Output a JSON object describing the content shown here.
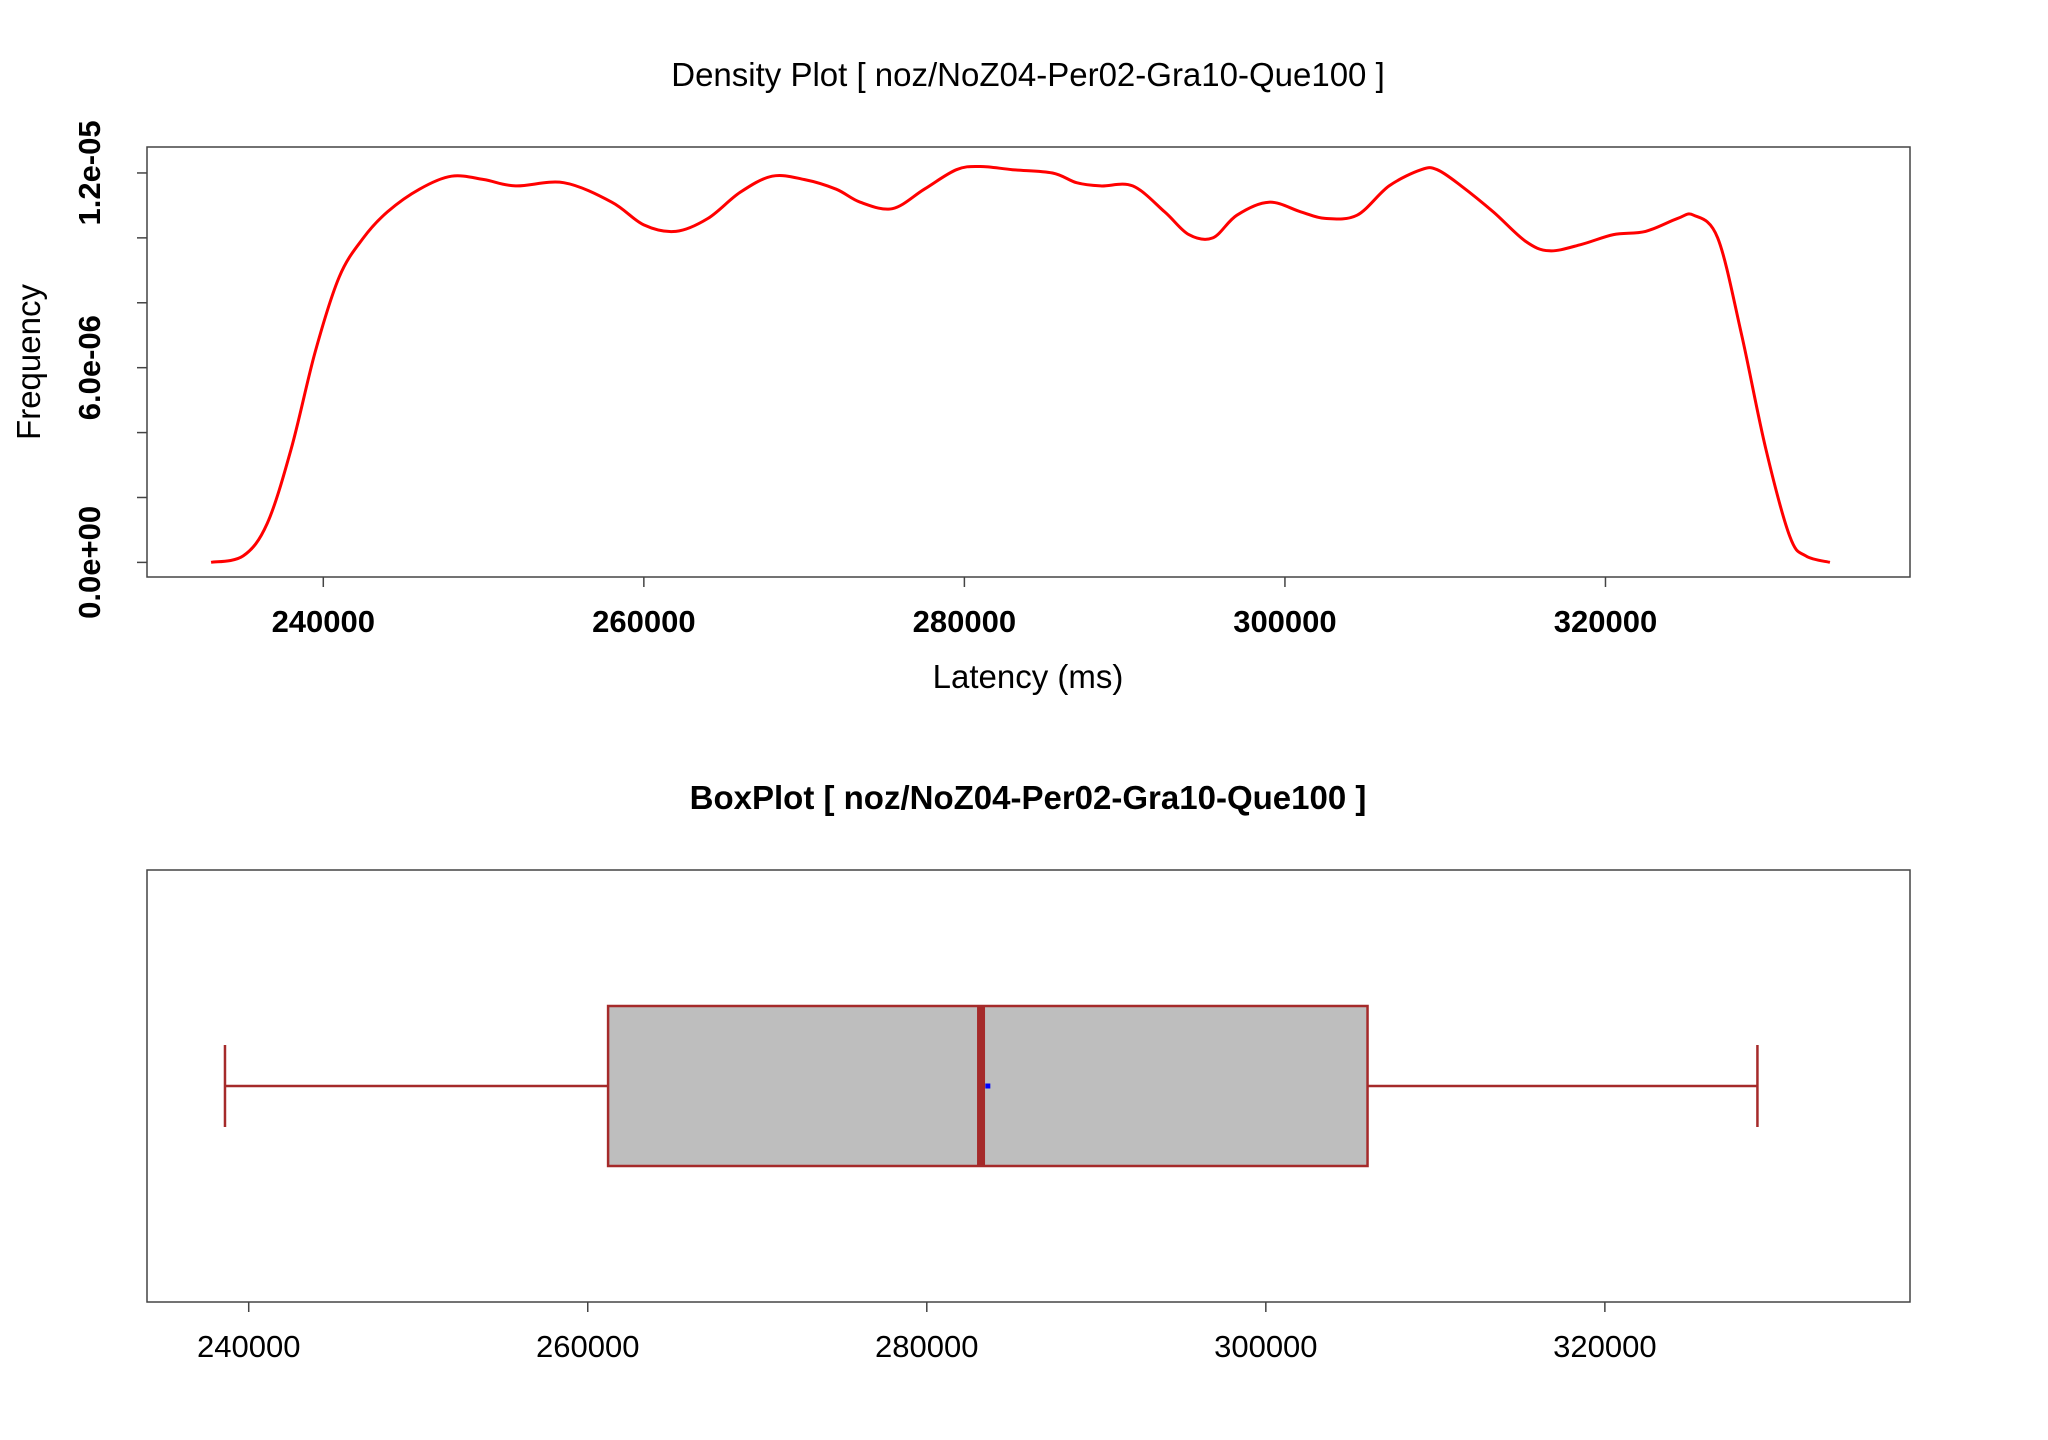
{
  "chart_data": [
    {
      "type": "line",
      "title": "Density Plot [ noz/NoZ04-Per02-Gra10-Que100 ]",
      "xlabel": "Latency (ms)",
      "ylabel": "Frequency",
      "xlim": [
        229000,
        339000
      ],
      "ylim": [
        -4.5e-07,
        1.28e-05
      ],
      "xticks": [
        240000,
        260000,
        280000,
        300000,
        320000
      ],
      "xtick_labels": [
        "240000",
        "260000",
        "280000",
        "300000",
        "320000"
      ],
      "yticks": [
        0,
        2e-06,
        4e-06,
        6e-06,
        8e-06,
        1e-05,
        1.2e-05
      ],
      "ytick_labels": [
        "0.0e+00",
        "",
        "",
        "6.0e-06",
        "",
        "",
        "1.2e-05"
      ],
      "grid": false,
      "series": [
        {
          "color": "#ff0000",
          "x": [
            233000,
            235000,
            236500,
            238000,
            239500,
            241000,
            242500,
            244000,
            246000,
            248000,
            250000,
            252000,
            255000,
            258000,
            260000,
            262000,
            264000,
            266000,
            268000,
            270000,
            272000,
            273500,
            275500,
            277500,
            279500,
            281000,
            283000,
            285500,
            287000,
            288500,
            290500,
            292500,
            294000,
            295500,
            297000,
            299000,
            301000,
            302500,
            304500,
            306500,
            308500,
            309500,
            311000,
            313000,
            315000,
            316500,
            318500,
            320500,
            322500,
            324500,
            325500,
            327000,
            328500,
            330000,
            331500,
            332500,
            334000
          ],
          "y": [
            0,
            2e-07,
            1.2e-06,
            3.5e-06,
            6.5e-06,
            8.8e-06,
            1e-05,
            1.08e-05,
            1.15e-05,
            1.19e-05,
            1.18e-05,
            1.16e-05,
            1.17e-05,
            1.11e-05,
            1.04e-05,
            1.02e-05,
            1.06e-05,
            1.14e-05,
            1.19e-05,
            1.18e-05,
            1.15e-05,
            1.11e-05,
            1.09e-05,
            1.15e-05,
            1.21e-05,
            1.22e-05,
            1.21e-05,
            1.2e-05,
            1.17e-05,
            1.16e-05,
            1.16e-05,
            1.08e-05,
            1.01e-05,
            1e-05,
            1.07e-05,
            1.11e-05,
            1.08e-05,
            1.06e-05,
            1.07e-05,
            1.16e-05,
            1.21e-05,
            1.21e-05,
            1.16e-05,
            1.08e-05,
            9.9e-06,
            9.6e-06,
            9.8e-06,
            1.01e-05,
            1.02e-05,
            1.06e-05,
            1.07e-05,
            1e-05,
            7e-06,
            3.5e-06,
            8e-07,
            2e-07,
            0
          ]
        }
      ]
    },
    {
      "type": "box",
      "title": "BoxPlot [ noz/NoZ04-Per02-Gra10-Que100 ]",
      "xlim": [
        234000,
        338000
      ],
      "xticks": [
        240000,
        260000,
        280000,
        300000,
        320000
      ],
      "xtick_labels": [
        "240000",
        "260000",
        "280000",
        "300000",
        "320000"
      ],
      "grid": false,
      "orientation": "horizontal",
      "whisker_low": 238600,
      "q1": 261200,
      "median": 283200,
      "mean": 283600,
      "q3": 306000,
      "whisker_high": 329000,
      "box_fill": "#bebebe",
      "box_color": "#a52a2a",
      "mean_color": "#0000ff"
    }
  ]
}
